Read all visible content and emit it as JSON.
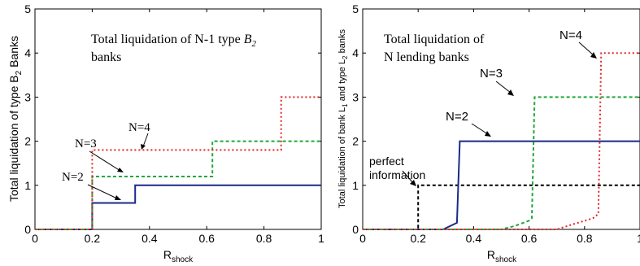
{
  "chart_data": [
    {
      "type": "line",
      "xlabel": "R",
      "xlabel_sub": "shock",
      "ylabel_pre": "Total liquidation of type B",
      "ylabel_sub": "2",
      "ylabel_post": " Banks",
      "xlim": [
        0,
        1
      ],
      "ylim": [
        0,
        5
      ],
      "xticks": [
        "0",
        "0.2",
        "0.4",
        "0.6",
        "0.8",
        "1"
      ],
      "yticks": [
        "0",
        "1",
        "2",
        "3",
        "4",
        "5"
      ],
      "grid": false,
      "title_box": {
        "line1_pre": "Total liquidation of N-1 type ",
        "line1_italic": "B",
        "line1_sub": "2",
        "line2": "banks"
      },
      "annotations": [
        {
          "label": "N=2",
          "series": "N=2"
        },
        {
          "label": "N=3",
          "series": "N=3"
        },
        {
          "label": "N=4",
          "series": "N=4"
        }
      ],
      "series": [
        {
          "name": "N=2",
          "color": "#1a2a8a",
          "style": "solid",
          "x": [
            0,
            0.2,
            0.2,
            0.35,
            0.35,
            1.0
          ],
          "y": [
            0,
            0,
            0.6,
            0.6,
            1.0,
            1.0
          ]
        },
        {
          "name": "N=3",
          "color": "#1fa83a",
          "style": "dashed",
          "x": [
            0,
            0.2,
            0.2,
            0.62,
            0.62,
            1.0
          ],
          "y": [
            0,
            0,
            1.2,
            1.2,
            2.0,
            2.0
          ]
        },
        {
          "name": "N=4",
          "color": "#e0262b",
          "style": "dotted",
          "x": [
            0,
            0.2,
            0.2,
            0.86,
            0.86,
            1.0
          ],
          "y": [
            0,
            0,
            1.8,
            1.8,
            3.0,
            3.0
          ]
        }
      ]
    },
    {
      "type": "line",
      "xlabel": "R",
      "xlabel_sub": "shock",
      "ylabel_pre": "Total liquidation of bank L",
      "ylabel_sub1": "1",
      "ylabel_mid": " and type L",
      "ylabel_sub2": "2",
      "ylabel_post": " banks",
      "xlim": [
        0,
        1
      ],
      "ylim": [
        0,
        5
      ],
      "xticks": [
        "0",
        "0.2",
        "0.4",
        "0.6",
        "0.8",
        "1"
      ],
      "yticks": [
        "0",
        "1",
        "2",
        "3",
        "4",
        "5"
      ],
      "grid": false,
      "title_box": {
        "line1": "Total liquidation of",
        "line2": "N lending banks"
      },
      "annotations": [
        {
          "label": "perfect",
          "label2": "information",
          "series": "perfect information"
        },
        {
          "label": "N=2",
          "series": "N=2"
        },
        {
          "label": "N=3",
          "series": "N=3"
        },
        {
          "label": "N=4",
          "series": "N=4"
        }
      ],
      "series": [
        {
          "name": "perfect information",
          "color": "#000000",
          "style": "dashed",
          "x": [
            0,
            0.2,
            0.2,
            1.0
          ],
          "y": [
            0,
            0,
            1.0,
            1.0
          ]
        },
        {
          "name": "N=2",
          "color": "#1a2a8a",
          "style": "solid",
          "x": [
            0,
            0.29,
            0.33,
            0.34,
            0.35,
            1.0
          ],
          "y": [
            0,
            0,
            0.12,
            0.15,
            2.0,
            2.0
          ]
        },
        {
          "name": "N=3",
          "color": "#1fa83a",
          "style": "dashed",
          "x": [
            0,
            0.5,
            0.55,
            0.6,
            0.61,
            0.62,
            1.0
          ],
          "y": [
            0,
            0,
            0.08,
            0.2,
            0.25,
            3.0,
            3.0
          ]
        },
        {
          "name": "N=4",
          "color": "#e0262b",
          "style": "dotted",
          "x": [
            0,
            0.7,
            0.76,
            0.83,
            0.85,
            0.86,
            1.0
          ],
          "y": [
            0,
            0,
            0.12,
            0.25,
            0.35,
            4.0,
            4.0
          ]
        }
      ]
    }
  ]
}
